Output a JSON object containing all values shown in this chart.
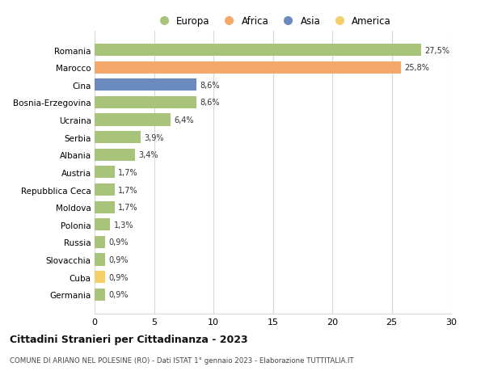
{
  "countries": [
    "Romania",
    "Marocco",
    "Cina",
    "Bosnia-Erzegovina",
    "Ucraina",
    "Serbia",
    "Albania",
    "Austria",
    "Repubblica Ceca",
    "Moldova",
    "Polonia",
    "Russia",
    "Slovacchia",
    "Cuba",
    "Germania"
  ],
  "values": [
    27.5,
    25.8,
    8.6,
    8.6,
    6.4,
    3.9,
    3.4,
    1.7,
    1.7,
    1.7,
    1.3,
    0.9,
    0.9,
    0.9,
    0.9
  ],
  "labels": [
    "27,5%",
    "25,8%",
    "8,6%",
    "8,6%",
    "6,4%",
    "3,9%",
    "3,4%",
    "1,7%",
    "1,7%",
    "1,7%",
    "1,3%",
    "0,9%",
    "0,9%",
    "0,9%",
    "0,9%"
  ],
  "colors": [
    "#a8c47a",
    "#f4a96a",
    "#6b8bbf",
    "#a8c47a",
    "#a8c47a",
    "#a8c47a",
    "#a8c47a",
    "#a8c47a",
    "#a8c47a",
    "#a8c47a",
    "#a8c47a",
    "#a8c47a",
    "#a8c47a",
    "#f5d06a",
    "#a8c47a"
  ],
  "legend_labels": [
    "Europa",
    "Africa",
    "Asia",
    "America"
  ],
  "legend_colors": [
    "#a8c47a",
    "#f4a96a",
    "#6b8bbf",
    "#f5d06a"
  ],
  "title": "Cittadini Stranieri per Cittadinanza - 2023",
  "subtitle": "COMUNE DI ARIANO NEL POLESINE (RO) - Dati ISTAT 1° gennaio 2023 - Elaborazione TUTTITALIA.IT",
  "xlim": [
    0,
    30
  ],
  "xticks": [
    0,
    5,
    10,
    15,
    20,
    25,
    30
  ],
  "background_color": "#ffffff",
  "grid_color": "#d8d8d8",
  "bar_height": 0.7
}
